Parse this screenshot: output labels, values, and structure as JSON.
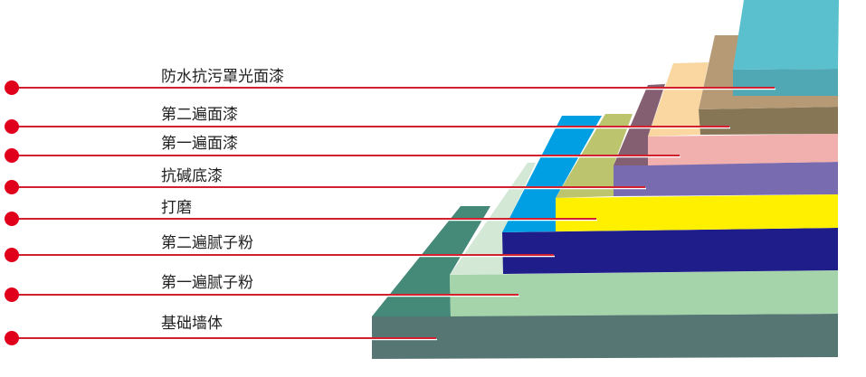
{
  "layers": [
    {
      "label": "防水抗污罩光面漆",
      "front": "#4fa8b4",
      "top": "#5bc0cd"
    },
    {
      "label": "第二遍面漆",
      "front": "#877656",
      "top": "#b59a75"
    },
    {
      "label": "第一遍面漆",
      "front": "#f1afae",
      "top": "#fad6a1"
    },
    {
      "label": "抗碱底漆",
      "front": "#786bb0",
      "top": "#845f72"
    },
    {
      "label": "打磨",
      "front": "#fff000",
      "top": "#bcc46e"
    },
    {
      "label": "第二遍腻子粉",
      "front": "#1f1d8a",
      "top": "#009fe3"
    },
    {
      "label": "第一遍腻子粉",
      "front": "#a5d4ab",
      "top": "#d3e8d5"
    },
    {
      "label": "基础墙体",
      "front": "#567674",
      "top": "#458a79"
    }
  ],
  "leader_color": "#d2202f",
  "dot_color": "#e0001b"
}
